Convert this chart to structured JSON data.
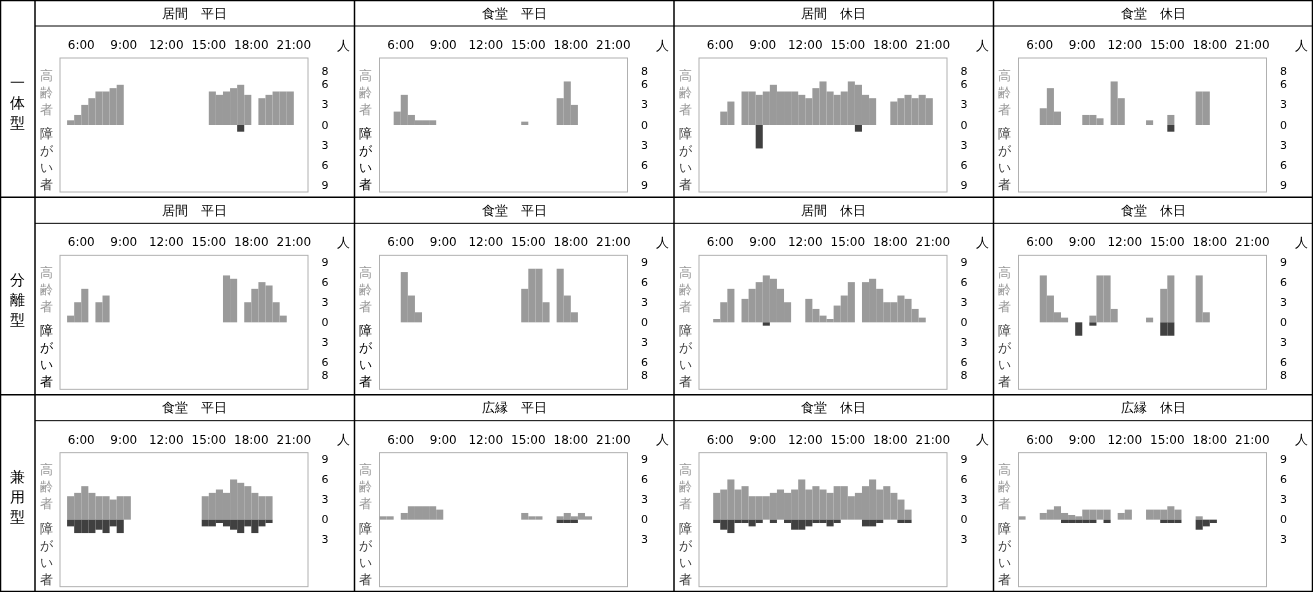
{
  "chart_data": [
    {
      "type": "bar",
      "title": "居間　平日",
      "annotations": [
        "一体型"
      ],
      "ylabel": "人",
      "xlim": [
        4.5,
        22
      ],
      "xticks": [
        {
          "value": 6,
          "label": "6:00"
        },
        {
          "value": 9,
          "label": "9:00"
        },
        {
          "value": 12,
          "label": "12:00"
        },
        {
          "value": 15,
          "label": "15:00"
        },
        {
          "value": 18,
          "label": "18:00"
        },
        {
          "value": 21,
          "label": "21:00"
        }
      ],
      "ylim": [
        -10,
        10
      ],
      "yticks": [
        8,
        6,
        3,
        0,
        {
          "value": -3,
          "label": "3"
        },
        {
          "value": -6,
          "label": "6"
        },
        {
          "value": -9,
          "label": "9"
        }
      ],
      "series": [
        {
          "name": "高齢者",
          "color": "#9a9a9a",
          "x": [
            5.25,
            5.75,
            6.25,
            6.75,
            7.25,
            7.75,
            8.25,
            8.75,
            15.25,
            15.75,
            16.25,
            16.75,
            17.25,
            17.75,
            18.75,
            19.25,
            19.75,
            20.25,
            20.75
          ],
          "values": [
            0.7,
            1.5,
            3,
            4,
            5,
            5,
            5.5,
            6,
            5,
            4.5,
            5,
            5.5,
            6,
            4.5,
            4,
            4.5,
            5,
            5,
            5
          ]
        },
        {
          "name": "障がい者",
          "color": "#404040",
          "x": [
            17.25
          ],
          "values": [
            -1
          ]
        }
      ]
    },
    {
      "type": "bar",
      "title": "食堂　平日",
      "ylabel": "人",
      "xlim": [
        4.5,
        22
      ],
      "xticks": [
        {
          "value": 6,
          "label": "6:00"
        },
        {
          "value": 9,
          "label": "9:00"
        },
        {
          "value": 12,
          "label": "12:00"
        },
        {
          "value": 15,
          "label": "15:00"
        },
        {
          "value": 18,
          "label": "18:00"
        },
        {
          "value": 21,
          "label": "21:00"
        }
      ],
      "ylim": [
        -10,
        10
      ],
      "yticks": [
        8,
        6,
        3,
        0,
        {
          "value": -3,
          "label": "3"
        },
        {
          "value": -6,
          "label": "6"
        },
        {
          "value": -9,
          "label": "9"
        }
      ],
      "series": [
        {
          "name": "高齢者",
          "color": "#9a9a9a",
          "x": [
            5.75,
            6.25,
            6.75,
            7.25,
            7.75,
            8.25,
            14.75,
            17.25,
            17.75,
            18.25
          ],
          "values": [
            2,
            4.5,
            1.5,
            0.7,
            0.7,
            0.7,
            0.5,
            4,
            6.5,
            3
          ]
        },
        {
          "name": "障がい者"
        }
      ]
    },
    {
      "type": "bar",
      "title": "居間　休日",
      "ylabel": "人",
      "xlim": [
        4.5,
        22
      ],
      "xticks": [
        {
          "value": 6,
          "label": "6:00"
        },
        {
          "value": 9,
          "label": "9:00"
        },
        {
          "value": 12,
          "label": "12:00"
        },
        {
          "value": 15,
          "label": "15:00"
        },
        {
          "value": 18,
          "label": "18:00"
        },
        {
          "value": 21,
          "label": "21:00"
        }
      ],
      "ylim": [
        -10,
        10
      ],
      "yticks": [
        8,
        6,
        3,
        0,
        {
          "value": -3,
          "label": "3"
        },
        {
          "value": -6,
          "label": "6"
        },
        {
          "value": -9,
          "label": "9"
        }
      ],
      "series": [
        {
          "name": "高齢者",
          "color": "#9a9a9a",
          "x": [
            6.25,
            6.75,
            7.75,
            8.25,
            8.75,
            9.25,
            9.75,
            10.25,
            10.75,
            11.25,
            11.75,
            12.25,
            12.75,
            13.25,
            13.75,
            14.25,
            14.75,
            15.25,
            15.75,
            16.25,
            16.75,
            18.25,
            18.75,
            19.25,
            19.75,
            20.25,
            20.75
          ],
          "values": [
            2,
            3.5,
            5,
            5,
            4.5,
            5,
            6,
            5,
            5,
            5,
            4.5,
            4,
            5.5,
            6.5,
            5,
            4.5,
            5,
            6.5,
            6,
            4.5,
            4,
            3.5,
            4,
            4.5,
            4,
            4.5,
            4
          ]
        },
        {
          "name": "障がい者",
          "color": "#404040",
          "x": [
            8.75,
            15.75
          ],
          "values": [
            -3.5,
            -1
          ]
        }
      ]
    },
    {
      "type": "bar",
      "title": "食堂　休日",
      "ylabel": "人",
      "xlim": [
        4.5,
        22
      ],
      "xticks": [
        {
          "value": 6,
          "label": "6:00"
        },
        {
          "value": 9,
          "label": "9:00"
        },
        {
          "value": 12,
          "label": "12:00"
        },
        {
          "value": 15,
          "label": "15:00"
        },
        {
          "value": 18,
          "label": "18:00"
        },
        {
          "value": 21,
          "label": "21:00"
        }
      ],
      "ylim": [
        -10,
        10
      ],
      "yticks": [
        8,
        6,
        3,
        0,
        {
          "value": -3,
          "label": "3"
        },
        {
          "value": -6,
          "label": "6"
        },
        {
          "value": -9,
          "label": "9"
        }
      ],
      "series": [
        {
          "name": "高齢者",
          "color": "#9a9a9a",
          "x": [
            6.25,
            6.75,
            7.25,
            9.25,
            9.75,
            10.25,
            11.25,
            11.75,
            13.75,
            15.25,
            17.25,
            17.75
          ],
          "values": [
            2.5,
            5.5,
            2,
            1.5,
            1.5,
            1,
            6.5,
            4,
            0.7,
            1.5,
            5,
            5
          ]
        },
        {
          "name": "障がい者",
          "color": "#404040",
          "x": [
            15.25
          ],
          "values": [
            -1
          ]
        }
      ]
    },
    {
      "type": "bar",
      "title": "居間　平日",
      "annotations": [
        "分離型"
      ],
      "ylabel": "人",
      "xlim": [
        4.5,
        22
      ],
      "xticks": [
        {
          "value": 6,
          "label": "6:00"
        },
        {
          "value": 9,
          "label": "9:00"
        },
        {
          "value": 12,
          "label": "12:00"
        },
        {
          "value": 15,
          "label": "15:00"
        },
        {
          "value": 18,
          "label": "18:00"
        },
        {
          "value": 21,
          "label": "21:00"
        }
      ],
      "ylim": [
        -10,
        10
      ],
      "yticks": [
        9,
        6,
        3,
        0,
        {
          "value": -3,
          "label": "3"
        },
        {
          "value": -6,
          "label": "6"
        },
        {
          "value": -8,
          "label": "8"
        }
      ],
      "series": [
        {
          "name": "高齢者",
          "color": "#9a9a9a",
          "x": [
            5.25,
            5.75,
            6.25,
            7.25,
            7.75,
            16.25,
            16.75,
            17.75,
            18.25,
            18.75,
            19.25,
            19.75,
            20.25
          ],
          "values": [
            1,
            3,
            5,
            3,
            4,
            7,
            6.5,
            3,
            5,
            6,
            5.5,
            3,
            1
          ]
        },
        {
          "name": "障がい者"
        }
      ]
    },
    {
      "type": "bar",
      "title": "食堂　平日",
      "ylabel": "人",
      "xlim": [
        4.5,
        22
      ],
      "xticks": [
        {
          "value": 6,
          "label": "6:00"
        },
        {
          "value": 9,
          "label": "9:00"
        },
        {
          "value": 12,
          "label": "12:00"
        },
        {
          "value": 15,
          "label": "15:00"
        },
        {
          "value": 18,
          "label": "18:00"
        },
        {
          "value": 21,
          "label": "21:00"
        }
      ],
      "ylim": [
        -10,
        10
      ],
      "yticks": [
        9,
        6,
        3,
        0,
        {
          "value": -3,
          "label": "3"
        },
        {
          "value": -6,
          "label": "6"
        },
        {
          "value": -8,
          "label": "8"
        }
      ],
      "series": [
        {
          "name": "高齢者",
          "color": "#9a9a9a",
          "x": [
            6.25,
            6.75,
            7.25,
            14.75,
            15.25,
            15.75,
            16.25,
            17.25,
            17.75,
            18.25
          ],
          "values": [
            7.5,
            4,
            1.5,
            5,
            8,
            8,
            3,
            8,
            4,
            1.5
          ]
        },
        {
          "name": "障がい者"
        }
      ]
    },
    {
      "type": "bar",
      "title": "居間　休日",
      "ylabel": "人",
      "xlim": [
        4.5,
        22
      ],
      "xticks": [
        {
          "value": 6,
          "label": "6:00"
        },
        {
          "value": 9,
          "label": "9:00"
        },
        {
          "value": 12,
          "label": "12:00"
        },
        {
          "value": 15,
          "label": "15:00"
        },
        {
          "value": 18,
          "label": "18:00"
        },
        {
          "value": 21,
          "label": "21:00"
        }
      ],
      "ylim": [
        -10,
        10
      ],
      "yticks": [
        9,
        6,
        3,
        0,
        {
          "value": -3,
          "label": "3"
        },
        {
          "value": -6,
          "label": "6"
        },
        {
          "value": -8,
          "label": "8"
        }
      ],
      "series": [
        {
          "name": "高齢者",
          "color": "#9a9a9a",
          "x": [
            5.75,
            6.25,
            6.75,
            7.75,
            8.25,
            8.75,
            9.25,
            9.75,
            10.25,
            10.75,
            12.25,
            12.75,
            13.25,
            13.75,
            14.25,
            14.75,
            15.25,
            16.25,
            16.75,
            17.25,
            17.75,
            18.25,
            18.75,
            19.25,
            19.75,
            20.25
          ],
          "values": [
            0.5,
            3,
            5,
            3.5,
            5,
            6,
            7,
            6.5,
            5,
            3,
            3.5,
            2,
            1,
            0.5,
            2.5,
            4,
            6,
            6,
            6.5,
            5,
            3,
            3,
            4,
            3.5,
            2,
            0.7
          ]
        },
        {
          "name": "障がい者",
          "color": "#404040",
          "x": [
            9.25
          ],
          "values": [
            -0.5
          ]
        }
      ]
    },
    {
      "type": "bar",
      "title": "食堂　休日",
      "ylabel": "人",
      "xlim": [
        4.5,
        22
      ],
      "xticks": [
        {
          "value": 6,
          "label": "6:00"
        },
        {
          "value": 9,
          "label": "9:00"
        },
        {
          "value": 12,
          "label": "12:00"
        },
        {
          "value": 15,
          "label": "15:00"
        },
        {
          "value": 18,
          "label": "18:00"
        },
        {
          "value": 21,
          "label": "21:00"
        }
      ],
      "ylim": [
        -10,
        10
      ],
      "yticks": [
        9,
        6,
        3,
        0,
        {
          "value": -3,
          "label": "3"
        },
        {
          "value": -6,
          "label": "6"
        },
        {
          "value": -8,
          "label": "8"
        }
      ],
      "series": [
        {
          "name": "高齢者",
          "color": "#9a9a9a",
          "x": [
            6.25,
            6.75,
            7.25,
            7.75,
            9.75,
            10.25,
            10.75,
            11.25,
            13.75,
            14.75,
            15.25,
            17.25,
            17.75
          ],
          "values": [
            7,
            4,
            1.5,
            0.7,
            1,
            7,
            7,
            2,
            0.7,
            5,
            7,
            7,
            1.5
          ]
        },
        {
          "name": "障がい者",
          "color": "#404040",
          "x": [
            8.75,
            9.75,
            14.75,
            15.25
          ],
          "values": [
            -2,
            -0.5,
            -2,
            -2
          ]
        }
      ]
    },
    {
      "type": "bar",
      "title": "食堂　平日",
      "annotations": [
        "兼用型"
      ],
      "ylabel": "人",
      "xlim": [
        4.5,
        22
      ],
      "xticks": [
        {
          "value": 6,
          "label": "6:00"
        },
        {
          "value": 9,
          "label": "9:00"
        },
        {
          "value": 12,
          "label": "12:00"
        },
        {
          "value": 15,
          "label": "15:00"
        },
        {
          "value": 18,
          "label": "18:00"
        },
        {
          "value": 21,
          "label": "21:00"
        }
      ],
      "ylim": [
        -10,
        10
      ],
      "yticks": [
        9,
        6,
        3,
        0,
        {
          "value": -3,
          "label": "3"
        }
      ],
      "series": [
        {
          "name": "高齢者",
          "color": "#9a9a9a",
          "x": [
            5.25,
            5.75,
            6.25,
            6.75,
            7.25,
            7.75,
            8.25,
            8.75,
            9.25,
            14.75,
            15.25,
            15.75,
            16.25,
            16.75,
            17.25,
            17.75,
            18.25,
            18.75,
            19.25
          ],
          "values": [
            3.5,
            4,
            5,
            4,
            3.5,
            3.5,
            3,
            3.5,
            3.5,
            3.5,
            4,
            4.5,
            4,
            6,
            5.5,
            5,
            4,
            3.5,
            3.5
          ]
        },
        {
          "name": "障がい者",
          "color": "#404040",
          "x": [
            5.25,
            5.75,
            6.25,
            6.75,
            7.25,
            7.75,
            8.25,
            8.75,
            14.75,
            15.25,
            15.75,
            16.25,
            16.75,
            17.25,
            17.75,
            18.25,
            18.75,
            19.25
          ],
          "values": [
            -1,
            -2,
            -2,
            -2,
            -1.5,
            -2,
            -1,
            -2,
            -1,
            -1,
            -0.5,
            -1,
            -1.5,
            -2,
            -1,
            -2,
            -1,
            -0.5
          ]
        }
      ]
    },
    {
      "type": "bar",
      "title": "広縁　平日",
      "ylabel": "人",
      "xlim": [
        4.5,
        22
      ],
      "xticks": [
        {
          "value": 6,
          "label": "6:00"
        },
        {
          "value": 9,
          "label": "9:00"
        },
        {
          "value": 12,
          "label": "12:00"
        },
        {
          "value": 15,
          "label": "15:00"
        },
        {
          "value": 18,
          "label": "18:00"
        },
        {
          "value": 21,
          "label": "21:00"
        }
      ],
      "ylim": [
        -10,
        10
      ],
      "yticks": [
        9,
        6,
        3,
        0,
        {
          "value": -3,
          "label": "3"
        }
      ],
      "series": [
        {
          "name": "高齢者",
          "color": "#9a9a9a",
          "x": [
            4.75,
            5.25,
            6.25,
            6.75,
            7.25,
            7.75,
            8.25,
            8.75,
            14.75,
            15.25,
            15.75,
            17.25,
            17.75,
            18.25,
            18.75,
            19.25
          ],
          "values": [
            0.5,
            0.5,
            1,
            2,
            2,
            2,
            2,
            1.5,
            1,
            0.5,
            0.5,
            0.5,
            1,
            0.5,
            1,
            0.5
          ]
        },
        {
          "name": "障がい者",
          "color": "#404040",
          "x": [
            17.25,
            17.75,
            18.25
          ],
          "values": [
            -0.5,
            -0.5,
            -0.5
          ]
        }
      ]
    },
    {
      "type": "bar",
      "title": "食堂　休日",
      "ylabel": "人",
      "xlim": [
        4.5,
        22
      ],
      "xticks": [
        {
          "value": 6,
          "label": "6:00"
        },
        {
          "value": 9,
          "label": "9:00"
        },
        {
          "value": 12,
          "label": "12:00"
        },
        {
          "value": 15,
          "label": "15:00"
        },
        {
          "value": 18,
          "label": "18:00"
        },
        {
          "value": 21,
          "label": "21:00"
        }
      ],
      "ylim": [
        -10,
        10
      ],
      "yticks": [
        9,
        6,
        3,
        0,
        {
          "value": -3,
          "label": "3"
        }
      ],
      "series": [
        {
          "name": "高齢者",
          "color": "#9a9a9a",
          "x": [
            5.75,
            6.25,
            6.75,
            7.25,
            7.75,
            8.25,
            8.75,
            9.25,
            9.75,
            10.25,
            10.75,
            11.25,
            11.75,
            12.25,
            12.75,
            13.25,
            13.75,
            14.25,
            14.75,
            15.25,
            15.75,
            16.25,
            16.75,
            17.25,
            17.75,
            18.25,
            18.75,
            19.25
          ],
          "values": [
            4,
            4.5,
            6,
            4.5,
            5,
            3.5,
            3.5,
            3.5,
            4,
            4.5,
            4,
            4.5,
            6,
            4.5,
            5,
            4.5,
            4,
            5,
            5,
            3.5,
            4,
            5,
            6,
            4.5,
            5,
            4,
            3,
            1.5
          ]
        },
        {
          "name": "障がい者",
          "color": "#404040",
          "x": [
            5.75,
            6.25,
            6.75,
            7.25,
            7.75,
            8.25,
            8.75,
            9.75,
            10.75,
            11.25,
            11.75,
            12.25,
            12.75,
            13.25,
            13.75,
            14.25,
            16.25,
            16.75,
            17.25,
            18.75,
            19.25
          ],
          "values": [
            -0.5,
            -1.5,
            -2,
            -0.5,
            -0.5,
            -1,
            -0.5,
            -0.5,
            -0.5,
            -1.5,
            -1.5,
            -1,
            -0.5,
            -0.5,
            -1,
            -0.5,
            -1,
            -1,
            -0.5,
            -0.5,
            -0.5
          ]
        }
      ]
    },
    {
      "type": "bar",
      "title": "広縁　休日",
      "ylabel": "人",
      "xlim": [
        4.5,
        22
      ],
      "xticks": [
        {
          "value": 6,
          "label": "6:00"
        },
        {
          "value": 9,
          "label": "9:00"
        },
        {
          "value": 12,
          "label": "12:00"
        },
        {
          "value": 15,
          "label": "15:00"
        },
        {
          "value": 18,
          "label": "18:00"
        },
        {
          "value": 21,
          "label": "21:00"
        }
      ],
      "ylim": [
        -10,
        10
      ],
      "yticks": [
        9,
        6,
        3,
        0,
        {
          "value": -3,
          "label": "3"
        }
      ],
      "series": [
        {
          "name": "高齢者",
          "color": "#9a9a9a",
          "x": [
            4.75,
            6.25,
            6.75,
            7.25,
            7.75,
            8.25,
            8.75,
            9.25,
            9.75,
            10.25,
            10.75,
            11.75,
            12.25,
            13.75,
            14.25,
            14.75,
            15.25,
            15.75,
            17.25
          ],
          "values": [
            0.5,
            1,
            1.5,
            2,
            1,
            0.7,
            0.5,
            1.5,
            1.5,
            1.5,
            1.5,
            1,
            1.5,
            1.5,
            1.5,
            1.5,
            2,
            1.5,
            0.5
          ]
        },
        {
          "name": "障がい者",
          "color": "#404040",
          "x": [
            7.75,
            8.25,
            8.75,
            9.25,
            9.75,
            10.75,
            14.75,
            15.25,
            15.75,
            17.25,
            17.75,
            18.25
          ],
          "values": [
            -0.5,
            -0.5,
            -0.5,
            -0.5,
            -0.5,
            -0.5,
            -0.5,
            -0.5,
            -0.5,
            -1.5,
            -1,
            -0.5
          ]
        }
      ]
    }
  ]
}
